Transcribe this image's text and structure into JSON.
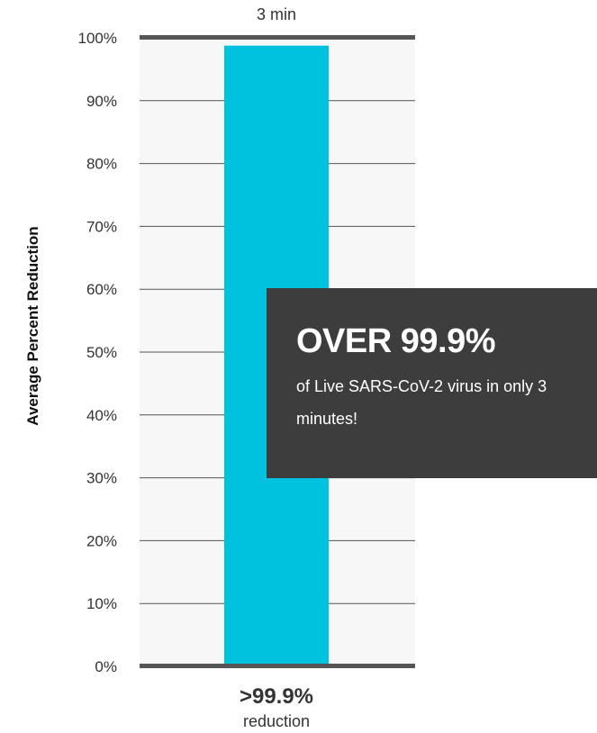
{
  "chart_data": {
    "type": "bar",
    "categories": [
      "3 min"
    ],
    "values": [
      99.9
    ],
    "ylabel": "Average Percent Reduction",
    "xlabel": "",
    "ylim": [
      0,
      100
    ],
    "ytick_step": 10,
    "yticks": [
      "0%",
      "10%",
      "20%",
      "30%",
      "40%",
      "50%",
      "60%",
      "70%",
      "80%",
      "90%",
      "100%"
    ],
    "grid": true,
    "data_label": ">99.9%",
    "data_label_sub": "reduction",
    "colors": {
      "bar": "#00c1de",
      "axis": "#555555",
      "grid": "#555555",
      "plot_bg": "#f7f7f7",
      "text": "#333333"
    }
  },
  "callout": {
    "headline": "OVER 99.9%",
    "body": "of Live SARS-CoV-2 virus in only 3 minutes!",
    "background": "#3d3d3d",
    "text_color": "#ffffff"
  }
}
